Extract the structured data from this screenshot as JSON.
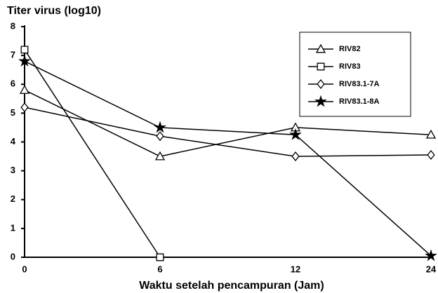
{
  "chart_data": {
    "type": "line",
    "ylabel": "Titer virus (log10)",
    "xlabel": "Waktu setelah pencampuran (Jam)",
    "categories": [
      "0",
      "6",
      "12",
      "24"
    ],
    "ylim": [
      0,
      8
    ],
    "yticks": [
      0,
      1,
      2,
      3,
      4,
      5,
      6,
      7,
      8
    ],
    "legend": "upper right",
    "series": [
      {
        "name": "RIV82",
        "color": "#000000",
        "marker": "triangle",
        "values": [
          5.8,
          3.5,
          4.5,
          4.25
        ]
      },
      {
        "name": "RIV83",
        "color": "#000000",
        "marker": "square",
        "values": [
          7.2,
          0,
          null,
          null
        ]
      },
      {
        "name": "RIV83.1-7A",
        "color": "#000000",
        "marker": "diamond",
        "values": [
          5.2,
          4.2,
          3.5,
          3.55
        ]
      },
      {
        "name": "RIV83.1-8A",
        "color": "#000000",
        "marker": "star",
        "values": [
          6.8,
          4.5,
          4.25,
          0.05
        ]
      }
    ]
  }
}
